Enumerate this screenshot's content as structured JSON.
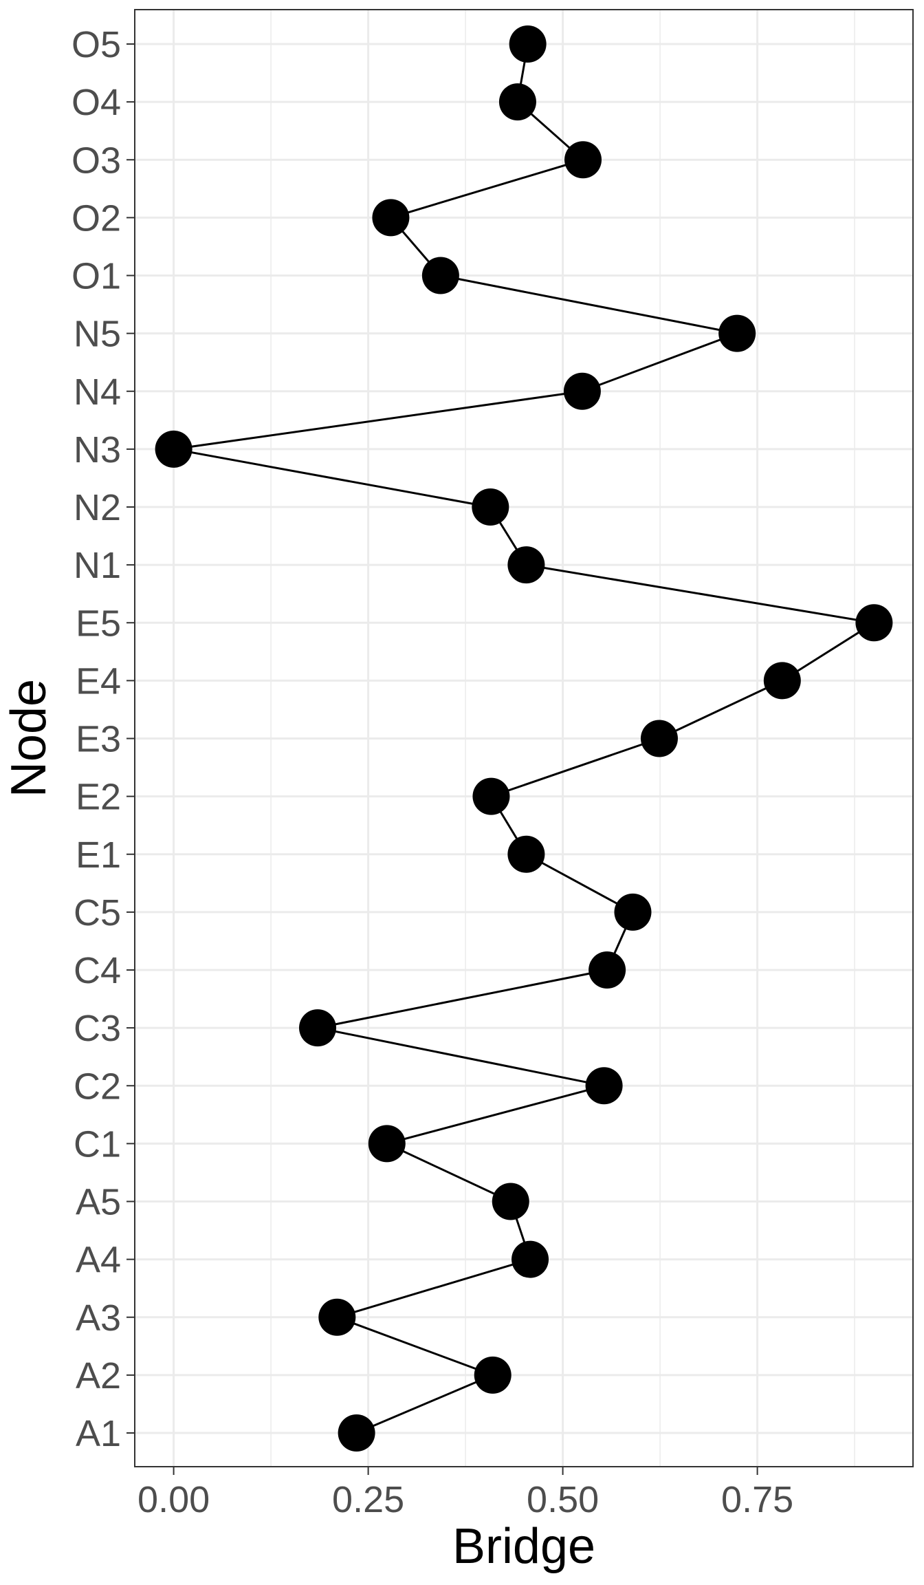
{
  "chart_data": {
    "type": "line",
    "orientation": "horizontal",
    "xlabel": "Bridge",
    "ylabel": "Node",
    "xlim": [
      -0.05,
      0.95
    ],
    "x_ticks": [
      0.0,
      0.25,
      0.5,
      0.75
    ],
    "x_tick_labels": [
      "0.00",
      "0.25",
      "0.50",
      "0.75"
    ],
    "grid": true,
    "legend": "none",
    "markers": true,
    "categories": [
      "A1",
      "A2",
      "A3",
      "A4",
      "A5",
      "C1",
      "C2",
      "C3",
      "C4",
      "C5",
      "E1",
      "E2",
      "E3",
      "E4",
      "E5",
      "N1",
      "N2",
      "N3",
      "N4",
      "N5",
      "O1",
      "O2",
      "O3",
      "O4",
      "O5"
    ],
    "series": [
      {
        "values": [
          0.235,
          0.41,
          0.21,
          0.458,
          0.433,
          0.274,
          0.553,
          0.185,
          0.557,
          0.59,
          0.453,
          0.408,
          0.624,
          0.782,
          0.9,
          0.453,
          0.407,
          0.0,
          0.525,
          0.724,
          0.343,
          0.279,
          0.526,
          0.442,
          0.455
        ]
      }
    ],
    "colors": {
      "line": "#000000",
      "point": "#000000",
      "grid": "#ebebeb",
      "panel_border": "#333333",
      "tick_text": "#4d4d4d"
    }
  }
}
